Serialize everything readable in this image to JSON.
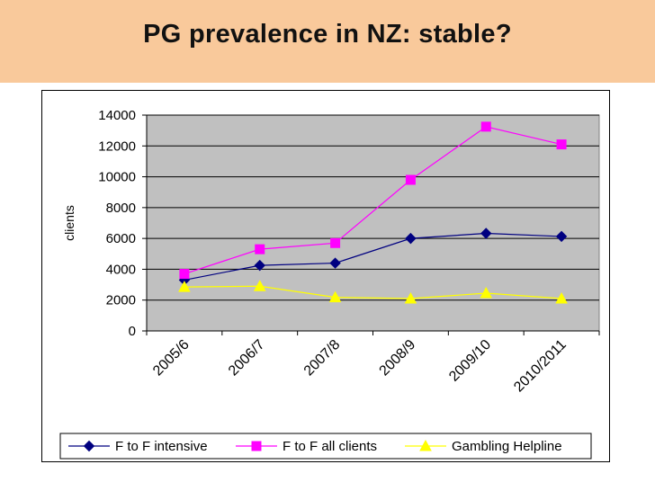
{
  "slide": {
    "title": "PG prevalence in NZ: stable?"
  },
  "colors": {
    "title_band": "#f9c99b",
    "plot_bg": "#c0c0c0",
    "grid": "#000000",
    "series": [
      "#000080",
      "#ff00ff",
      "#ffff00"
    ]
  },
  "chart_data": {
    "type": "line",
    "title": "",
    "xlabel": "",
    "ylabel": "clients",
    "ylim": [
      0,
      14000
    ],
    "yticks": [
      0,
      2000,
      4000,
      6000,
      8000,
      10000,
      12000,
      14000
    ],
    "categories": [
      "2005/6",
      "2006/7",
      "2007/8",
      "2008/9",
      "2009/10",
      "2010/2011"
    ],
    "grid": true,
    "legend_position": "bottom",
    "series": [
      {
        "name": "F to F intensive",
        "marker": "diamond",
        "color": "#000080",
        "values": [
          3300,
          4250,
          4400,
          6000,
          6330,
          6130
        ]
      },
      {
        "name": "F to F all clients",
        "marker": "square",
        "color": "#ff00ff",
        "values": [
          3700,
          5300,
          5700,
          9800,
          13250,
          12100
        ]
      },
      {
        "name": "Gambling Helpline",
        "marker": "triangle",
        "color": "#ffff00",
        "values": [
          2850,
          2900,
          2180,
          2100,
          2450,
          2100
        ]
      }
    ]
  }
}
